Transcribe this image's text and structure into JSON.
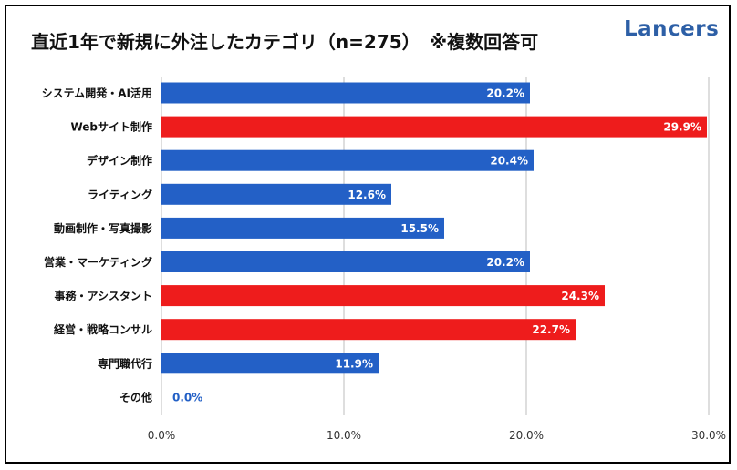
{
  "title": "直近1年で新規に外注したカテゴリ（n=275）　※複数回答可",
  "logo": {
    "text": "Lancers",
    "color": "#2d5fa6"
  },
  "colors": {
    "blue": "#2360c6",
    "red": "#ee1c1c",
    "grid": "#bdbdbd",
    "zero_label": "#2360c6"
  },
  "chart_data": {
    "type": "bar",
    "orientation": "horizontal",
    "title": "直近1年で新規に外注したカテゴリ（n=275）　※複数回答可",
    "categories": [
      "システム開発・AI活用",
      "Webサイト制作",
      "デザイン制作",
      "ライティング",
      "動画制作・写真撮影",
      "営業・マーケティング",
      "事務・アシスタント",
      "経営・戦略コンサル",
      "専門職代行",
      "その他"
    ],
    "values": [
      20.2,
      29.9,
      20.4,
      12.6,
      15.5,
      20.2,
      24.3,
      22.7,
      11.9,
      0.0
    ],
    "value_labels": [
      "20.2%",
      "29.9%",
      "20.4%",
      "12.6%",
      "15.5%",
      "20.2%",
      "24.3%",
      "22.7%",
      "11.9%",
      "0.0%"
    ],
    "bar_colors": [
      "blue",
      "red",
      "blue",
      "blue",
      "blue",
      "blue",
      "red",
      "red",
      "blue",
      "blue"
    ],
    "xlim": [
      0,
      30
    ],
    "xticks": [
      0,
      10,
      20,
      30
    ],
    "xtick_labels": [
      "0.0%",
      "10.0%",
      "20.0%",
      "30.0%"
    ],
    "grid": true
  }
}
